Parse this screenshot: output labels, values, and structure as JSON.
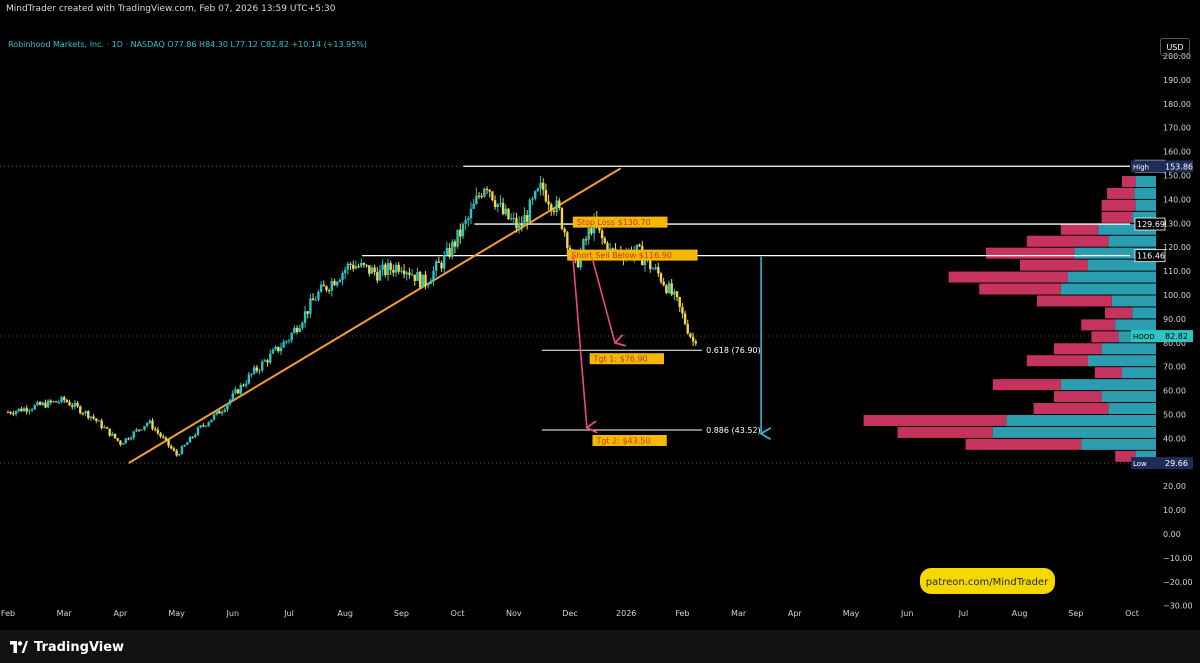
{
  "header": {
    "text": "MindTrader created with TradingView.com, Feb 07, 2026 13:59 UTC+5:30"
  },
  "symbol": {
    "name": "Robinhood Markets, Inc. · 1D · NASDAQ",
    "ohlc": "O77.86  H84.30  L77.12  C82.82  +10.14 (+13.95%)"
  },
  "currency": "USD",
  "colors": {
    "background": "#000000",
    "up_candle": "#2ec4c4",
    "down_candle": "#f0d64a",
    "trendline": "#f39c33",
    "vp_up": "#2a9db0",
    "vp_down": "#c6335f",
    "arrow_pink": "#e84a7f",
    "arrow_blue": "#31b5d8",
    "label_bg": "#f5b800"
  },
  "chart_data": {
    "type": "candlestick",
    "ticker": "HOOD",
    "y_axis": {
      "ticks": [
        200,
        190,
        180,
        170,
        160,
        150,
        140,
        130,
        120,
        110,
        100,
        90,
        80,
        70,
        60,
        50,
        40,
        30,
        20,
        10,
        0,
        -10,
        -20,
        -30
      ],
      "tick_labels": [
        "200.00",
        "190.00",
        "180.00",
        "170.00",
        "160.00",
        "150.00",
        "140.00",
        "130.00",
        "120.00",
        "110.00",
        "100.00",
        "90.00",
        "80.00",
        "70.00",
        "60.00",
        "50.00",
        "40.00",
        "30.00",
        "20.00",
        "10.00",
        "0.00",
        "−10.00",
        "−20.00",
        "−30.00"
      ],
      "range": [
        -33,
        208
      ]
    },
    "x_axis": {
      "labels": [
        "Feb",
        "Mar",
        "Apr",
        "May",
        "Jun",
        "Jul",
        "Aug",
        "Sep",
        "Oct",
        "Nov",
        "Dec",
        "2026",
        "Feb",
        "Mar",
        "Apr",
        "May",
        "Jun",
        "Jul",
        "Aug",
        "Sep",
        "Oct"
      ]
    },
    "price_path": [
      {
        "x": 0,
        "y": 51
      },
      {
        "x": 1.0,
        "y": 56
      },
      {
        "x": 1.5,
        "y": 49
      },
      {
        "x": 2.0,
        "y": 38
      },
      {
        "x": 2.5,
        "y": 47
      },
      {
        "x": 3.0,
        "y": 33
      },
      {
        "x": 3.4,
        "y": 44
      },
      {
        "x": 3.8,
        "y": 52
      },
      {
        "x": 4.3,
        "y": 66
      },
      {
        "x": 5.0,
        "y": 82
      },
      {
        "x": 5.5,
        "y": 100
      },
      {
        "x": 6.1,
        "y": 113
      },
      {
        "x": 6.6,
        "y": 109
      },
      {
        "x": 7.0,
        "y": 113
      },
      {
        "x": 7.4,
        "y": 105
      },
      {
        "x": 7.8,
        "y": 116
      },
      {
        "x": 8.2,
        "y": 132
      },
      {
        "x": 8.5,
        "y": 148
      },
      {
        "x": 8.8,
        "y": 134
      },
      {
        "x": 9.1,
        "y": 128
      },
      {
        "x": 9.5,
        "y": 145
      },
      {
        "x": 9.8,
        "y": 135
      },
      {
        "x": 10.1,
        "y": 112
      },
      {
        "x": 10.4,
        "y": 130
      },
      {
        "x": 10.7,
        "y": 118
      },
      {
        "x": 11.2,
        "y": 118
      },
      {
        "x": 11.6,
        "y": 108
      },
      {
        "x": 11.9,
        "y": 97
      },
      {
        "x": 12.2,
        "y": 80
      },
      {
        "x": 12.25,
        "y": 82.82
      }
    ],
    "levels": [
      {
        "label": "153.88",
        "value": 153.88,
        "color": "#ffffff"
      },
      {
        "label": "129.69",
        "value": 129.69,
        "color": "#ffffff"
      },
      {
        "label": "116.46",
        "value": 116.46,
        "color": "#ffffff"
      }
    ],
    "axis_tags": [
      {
        "prefix": "High",
        "label": "153.86",
        "value": 153.86
      },
      {
        "prefix": "HOOD",
        "label": "82.82",
        "value": 82.82
      },
      {
        "prefix": "Low",
        "label": "29.66",
        "value": 29.66
      }
    ],
    "trendline": [
      {
        "x": 2.15,
        "y": 29.7
      },
      {
        "x": 10.9,
        "y": 153
      }
    ],
    "fib_levels": [
      {
        "label": "0.618 (76.90)",
        "value": 76.9
      },
      {
        "label": "0.886 (43.52)",
        "value": 43.52
      }
    ],
    "annotations": [
      {
        "text": "Stop Loss $130.70",
        "value": 130.7
      },
      {
        "text": "Short Sell Below $116.90",
        "value": 116.9
      },
      {
        "text": "Tgt 1: $76.90",
        "value": 76.9
      },
      {
        "text": "Tgt 2: $43.50",
        "value": 43.52
      }
    ],
    "volume_profile": [
      {
        "price": 147.5,
        "up": 0.3,
        "down": 0.2
      },
      {
        "price": 142.5,
        "up": 0.32,
        "down": 0.4
      },
      {
        "price": 137.5,
        "up": 0.3,
        "down": 0.5
      },
      {
        "price": 132.5,
        "up": 0.35,
        "down": 0.45
      },
      {
        "price": 127.5,
        "up": 0.85,
        "down": 0.55
      },
      {
        "price": 122.5,
        "up": 0.7,
        "down": 1.2
      },
      {
        "price": 117.5,
        "up": 1.2,
        "down": 1.3
      },
      {
        "price": 112.5,
        "up": 1.0,
        "down": 1.0
      },
      {
        "price": 107.5,
        "up": 1.3,
        "down": 1.75
      },
      {
        "price": 102.5,
        "up": 1.4,
        "down": 1.2
      },
      {
        "price": 97.5,
        "up": 0.65,
        "down": 1.1
      },
      {
        "price": 92.5,
        "up": 0.35,
        "down": 0.4
      },
      {
        "price": 87.5,
        "up": 0.6,
        "down": 0.5
      },
      {
        "price": 82.5,
        "up": 0.55,
        "down": 0.4
      },
      {
        "price": 77.5,
        "up": 0.8,
        "down": 0.7
      },
      {
        "price": 72.5,
        "up": 1.0,
        "down": 0.9
      },
      {
        "price": 67.5,
        "up": 0.5,
        "down": 0.4
      },
      {
        "price": 62.5,
        "up": 1.4,
        "down": 1.0
      },
      {
        "price": 57.5,
        "up": 0.8,
        "down": 0.7
      },
      {
        "price": 52.5,
        "up": 0.7,
        "down": 1.1
      },
      {
        "price": 47.5,
        "up": 2.2,
        "down": 2.1
      },
      {
        "price": 42.5,
        "up": 2.4,
        "down": 1.4
      },
      {
        "price": 37.5,
        "up": 1.1,
        "down": 1.7
      },
      {
        "price": 32.5,
        "up": 0.3,
        "down": 0.3
      }
    ]
  },
  "watermark": "patreon.com/MindTrader",
  "footer": {
    "brand": "TradingView"
  }
}
